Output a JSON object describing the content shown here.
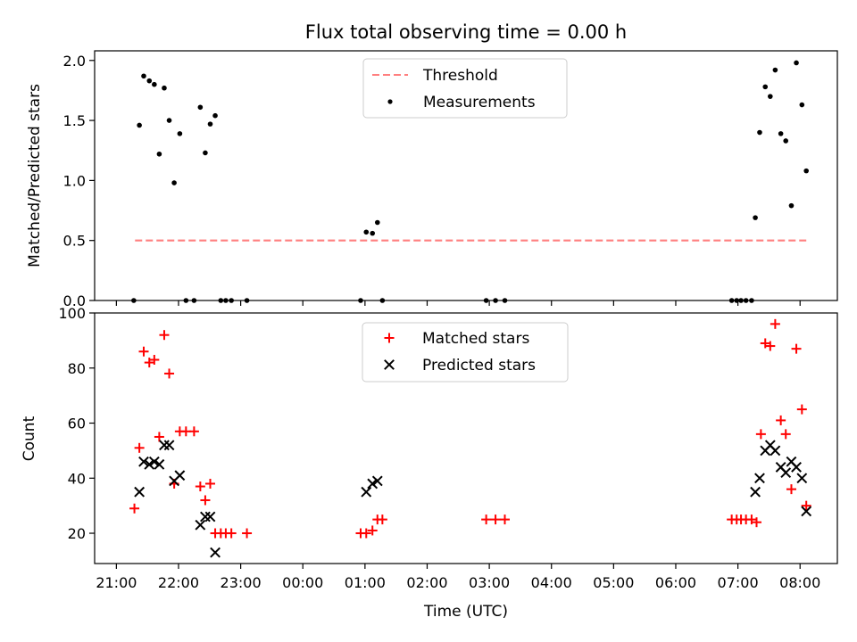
{
  "chart_data": {
    "type": "scatter",
    "title": "Flux total observing time = 0.00 h",
    "xlabel": "Time (UTC)",
    "x_tick_labels": [
      "21:00",
      "22:00",
      "23:00",
      "00:00",
      "01:00",
      "02:00",
      "03:00",
      "04:00",
      "05:00",
      "06:00",
      "07:00",
      "08:00"
    ],
    "x_tick_values": [
      21,
      22,
      23,
      24,
      25,
      26,
      27,
      28,
      29,
      30,
      31,
      32
    ],
    "xlim": [
      20.65,
      32.6
    ],
    "colors": {
      "threshold": "#ff7f7f",
      "measurements": "#000000",
      "matched": "#ff0000",
      "predicted": "#000000"
    },
    "top_panel": {
      "ylabel": "Matched/Predicted stars",
      "ylim": [
        0,
        2.08
      ],
      "y_ticks": [
        0.0,
        0.5,
        1.0,
        1.5,
        2.0
      ],
      "y_tick_labels": [
        "0.0",
        "0.5",
        "1.0",
        "1.5",
        "2.0"
      ],
      "legend_position": "upper center",
      "threshold": {
        "name": "Threshold",
        "y": 0.5,
        "x_range": [
          21.3,
          32.1
        ]
      },
      "measurements": {
        "name": "Measurements",
        "points": [
          [
            21.28,
            0.0
          ],
          [
            21.37,
            1.46
          ],
          [
            21.44,
            1.87
          ],
          [
            21.53,
            1.83
          ],
          [
            21.61,
            1.8
          ],
          [
            21.69,
            1.22
          ],
          [
            21.77,
            1.77
          ],
          [
            21.85,
            1.5
          ],
          [
            21.93,
            0.98
          ],
          [
            22.02,
            1.39
          ],
          [
            22.12,
            0.0
          ],
          [
            22.25,
            0.0
          ],
          [
            22.35,
            1.61
          ],
          [
            22.43,
            1.23
          ],
          [
            22.51,
            1.47
          ],
          [
            22.59,
            1.54
          ],
          [
            22.68,
            0.0
          ],
          [
            22.76,
            0.0
          ],
          [
            22.85,
            0.0
          ],
          [
            23.1,
            0.0
          ],
          [
            24.93,
            0.0
          ],
          [
            25.02,
            0.57
          ],
          [
            25.12,
            0.56
          ],
          [
            25.2,
            0.65
          ],
          [
            25.28,
            0.0
          ],
          [
            26.95,
            0.0
          ],
          [
            27.1,
            0.0
          ],
          [
            27.25,
            0.0
          ],
          [
            30.9,
            0.0
          ],
          [
            30.98,
            0.0
          ],
          [
            31.05,
            0.0
          ],
          [
            31.13,
            0.0
          ],
          [
            31.22,
            0.0
          ],
          [
            31.28,
            0.69
          ],
          [
            31.35,
            1.4
          ],
          [
            31.44,
            1.78
          ],
          [
            31.52,
            1.7
          ],
          [
            31.6,
            1.92
          ],
          [
            31.69,
            1.39
          ],
          [
            31.77,
            1.33
          ],
          [
            31.86,
            0.79
          ],
          [
            31.94,
            1.98
          ],
          [
            32.03,
            1.63
          ],
          [
            32.1,
            1.08
          ]
        ]
      }
    },
    "bottom_panel": {
      "ylabel": "Count",
      "ylim": [
        9,
        100
      ],
      "y_ticks": [
        20,
        40,
        60,
        80,
        100
      ],
      "y_tick_labels": [
        "20",
        "40",
        "60",
        "80",
        "100"
      ],
      "legend_position": "upper center",
      "matched": {
        "name": "Matched stars",
        "points": [
          [
            21.29,
            29
          ],
          [
            21.37,
            51
          ],
          [
            21.44,
            86
          ],
          [
            21.53,
            82
          ],
          [
            21.61,
            83
          ],
          [
            21.69,
            55
          ],
          [
            21.77,
            92
          ],
          [
            21.85,
            78
          ],
          [
            21.93,
            38
          ],
          [
            22.02,
            57
          ],
          [
            22.12,
            57
          ],
          [
            22.25,
            57
          ],
          [
            22.35,
            37
          ],
          [
            22.43,
            32
          ],
          [
            22.51,
            38
          ],
          [
            22.59,
            20
          ],
          [
            22.68,
            20
          ],
          [
            22.76,
            20
          ],
          [
            22.85,
            20
          ],
          [
            23.1,
            20
          ],
          [
            24.93,
            20
          ],
          [
            25.02,
            20
          ],
          [
            25.12,
            21
          ],
          [
            25.2,
            25
          ],
          [
            25.28,
            25
          ],
          [
            26.95,
            25
          ],
          [
            27.1,
            25
          ],
          [
            27.25,
            25
          ],
          [
            30.9,
            25
          ],
          [
            30.98,
            25
          ],
          [
            31.05,
            25
          ],
          [
            31.13,
            25
          ],
          [
            31.22,
            25
          ],
          [
            31.3,
            24
          ],
          [
            31.37,
            56
          ],
          [
            31.44,
            89
          ],
          [
            31.52,
            88
          ],
          [
            31.6,
            96
          ],
          [
            31.69,
            61
          ],
          [
            31.77,
            56
          ],
          [
            31.86,
            36
          ],
          [
            31.94,
            87
          ],
          [
            32.03,
            65
          ],
          [
            32.1,
            30
          ]
        ]
      },
      "predicted": {
        "name": "Predicted stars",
        "points": [
          [
            21.37,
            35
          ],
          [
            21.44,
            46
          ],
          [
            21.53,
            45
          ],
          [
            21.61,
            46
          ],
          [
            21.69,
            45
          ],
          [
            21.77,
            52
          ],
          [
            21.85,
            52
          ],
          [
            21.93,
            39
          ],
          [
            22.02,
            41
          ],
          [
            22.35,
            23
          ],
          [
            22.43,
            26
          ],
          [
            22.51,
            26
          ],
          [
            22.59,
            13
          ],
          [
            25.02,
            35
          ],
          [
            25.12,
            38
          ],
          [
            25.2,
            39
          ],
          [
            31.28,
            35
          ],
          [
            31.35,
            40
          ],
          [
            31.44,
            50
          ],
          [
            31.52,
            52
          ],
          [
            31.6,
            50
          ],
          [
            31.69,
            44
          ],
          [
            31.77,
            42
          ],
          [
            31.86,
            46
          ],
          [
            31.94,
            44
          ],
          [
            32.03,
            40
          ],
          [
            32.1,
            28
          ]
        ]
      }
    }
  }
}
